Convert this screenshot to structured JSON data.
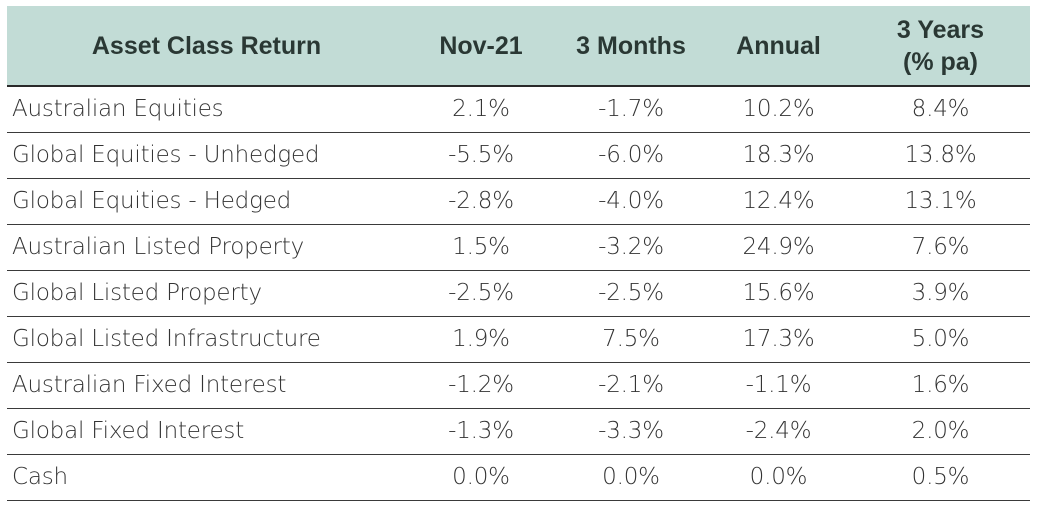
{
  "chart_data": {
    "type": "table",
    "columns": [
      "Asset Class Return",
      "Nov-21",
      "3 Months",
      "Annual",
      "3 Years",
      "(% pa)"
    ],
    "header": {
      "asset": "Asset Class Return",
      "nov": "Nov-21",
      "three_months": "3 Months",
      "annual": "Annual",
      "three_years_line1": "3 Years",
      "three_years_line2": "(% pa)"
    },
    "rows": [
      {
        "label": "Australian Equities",
        "values": [
          "2.1%",
          "-1.7%",
          "10.2%",
          "8.4%"
        ]
      },
      {
        "label": "Global Equities - Unhedged",
        "values": [
          "-5.5%",
          "-6.0%",
          "18.3%",
          "13.8%"
        ]
      },
      {
        "label": "Global Equities - Hedged",
        "values": [
          "-2.8%",
          "-4.0%",
          "12.4%",
          "13.1%"
        ]
      },
      {
        "label": "Australian Listed Property",
        "values": [
          "1.5%",
          "-3.2%",
          "24.9%",
          "7.6%"
        ]
      },
      {
        "label": "Global Listed Property",
        "values": [
          "-2.5%",
          "-2.5%",
          "15.6%",
          "3.9%"
        ]
      },
      {
        "label": "Global Listed Infrastructure",
        "values": [
          "1.9%",
          "7.5%",
          "17.3%",
          "5.0%"
        ]
      },
      {
        "label": "Australian Fixed Interest",
        "values": [
          "-1.2%",
          "-2.1%",
          "-1.1%",
          "1.6%"
        ]
      },
      {
        "label": "Global Fixed Interest",
        "values": [
          "-1.3%",
          "-3.3%",
          "-2.4%",
          "2.0%"
        ]
      },
      {
        "label": "Cash",
        "values": [
          "0.0%",
          "0.0%",
          "0.0%",
          "0.5%"
        ]
      }
    ]
  },
  "colors": {
    "header_bg": "#c2dcd6",
    "header_text": "#2a3834",
    "body_text": "#333333",
    "rule": "#3a3a3a"
  }
}
